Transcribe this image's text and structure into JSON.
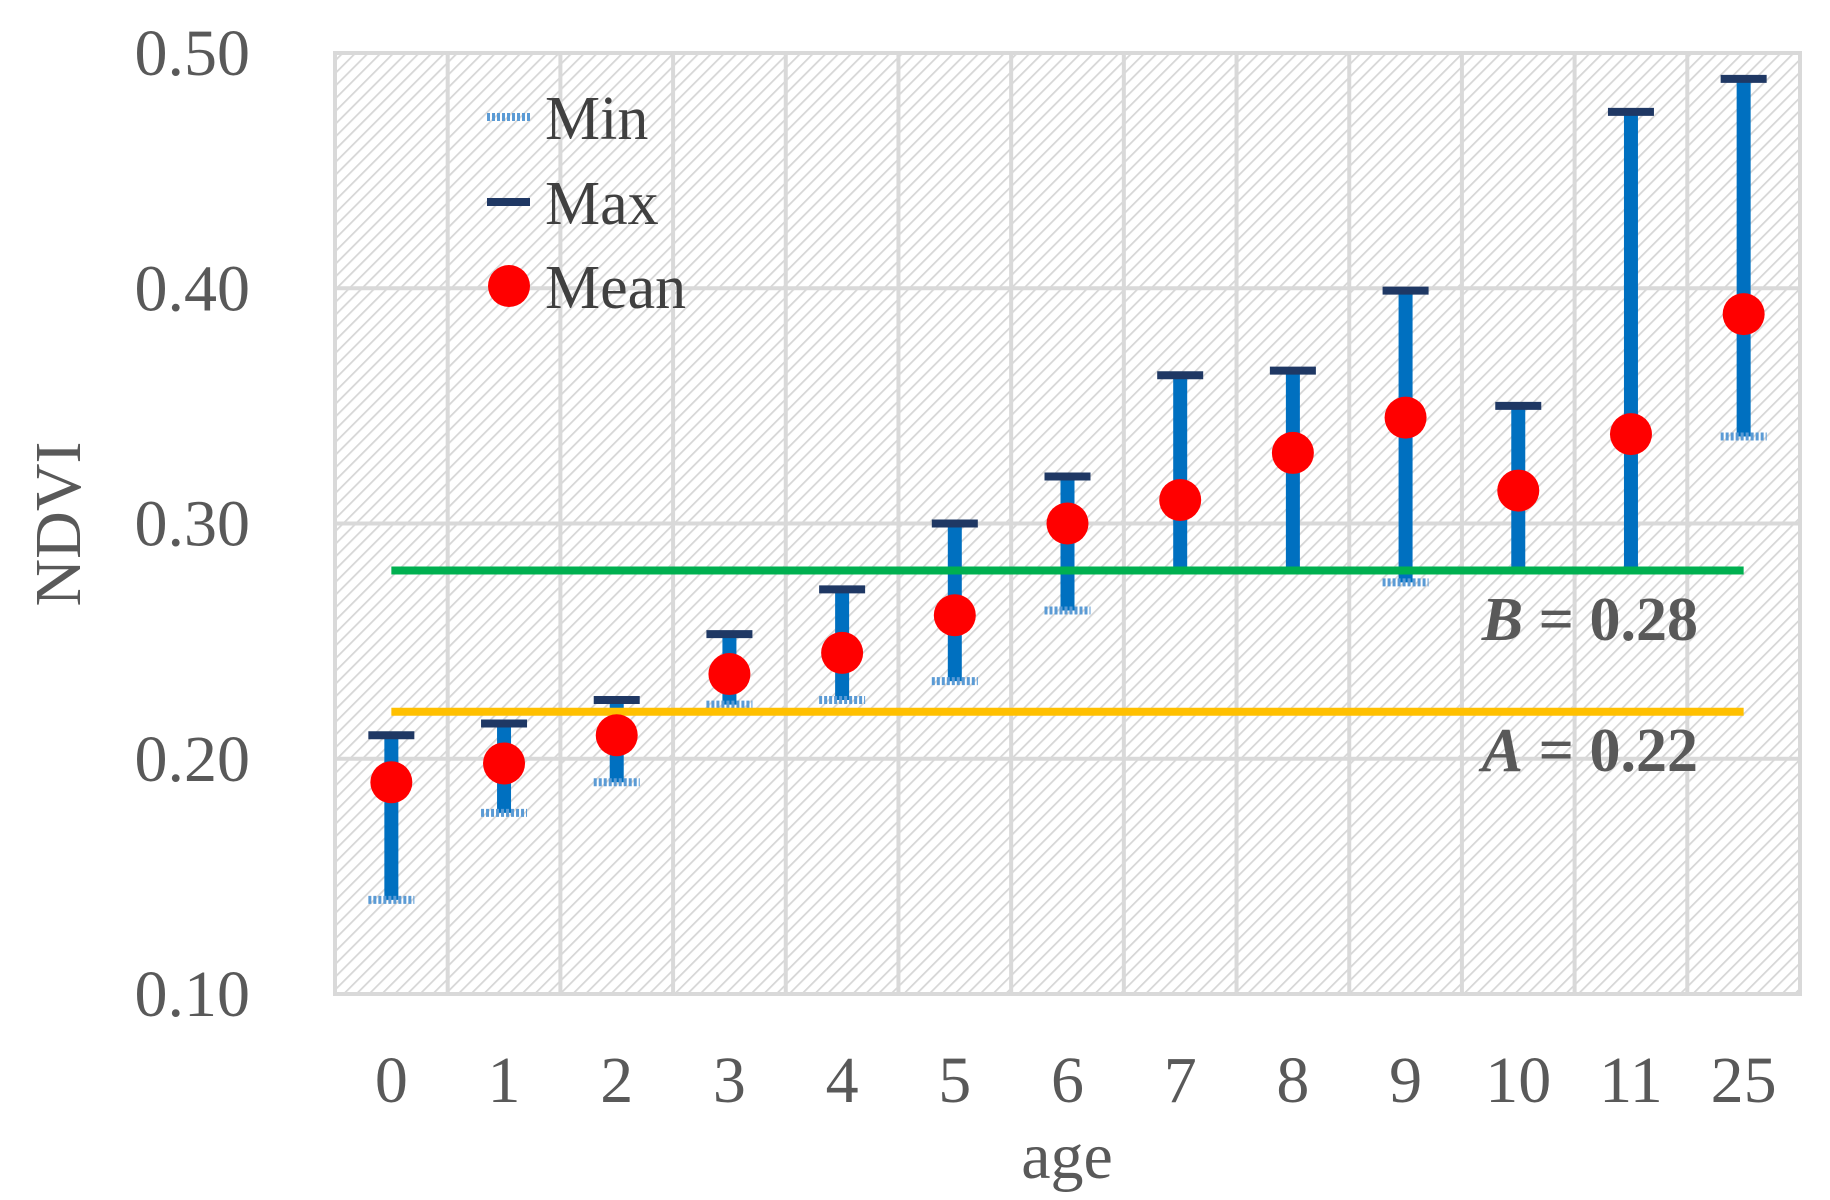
{
  "chart_data": {
    "type": "scatter",
    "title": "",
    "xlabel": "age",
    "ylabel": "NDVI",
    "ylim": [
      0.1,
      0.5
    ],
    "y_ticks": [
      "0.10",
      "0.20",
      "0.30",
      "0.40",
      "0.50"
    ],
    "categories": [
      "0",
      "1",
      "2",
      "3",
      "4",
      "5",
      "6",
      "7",
      "8",
      "9",
      "10",
      "11",
      "25"
    ],
    "series": [
      {
        "name": "Min",
        "color": "#5B9BD5",
        "values": [
          0.14,
          0.177,
          0.19,
          0.223,
          0.225,
          0.233,
          0.263,
          0.28,
          0.28,
          0.275,
          0.28,
          0.28,
          0.337
        ]
      },
      {
        "name": "Max",
        "color": "#1F3864",
        "values": [
          0.21,
          0.215,
          0.225,
          0.253,
          0.272,
          0.3,
          0.32,
          0.363,
          0.365,
          0.399,
          0.35,
          0.475,
          0.489
        ]
      },
      {
        "name": "Mean",
        "color": "#FF0000",
        "values": [
          0.19,
          0.198,
          0.21,
          0.236,
          0.245,
          0.261,
          0.3,
          0.31,
          0.33,
          0.345,
          0.314,
          0.338,
          0.389
        ]
      }
    ],
    "bar_color": "#0070C0",
    "thresholds": [
      {
        "var": "B",
        "text": " = 0.28",
        "value": 0.28,
        "color": "#00B050"
      },
      {
        "var": "A",
        "text": " = 0.22",
        "value": 0.22,
        "color": "#FFC000"
      }
    ],
    "legend": {
      "position": "top-left"
    },
    "grid": true
  }
}
